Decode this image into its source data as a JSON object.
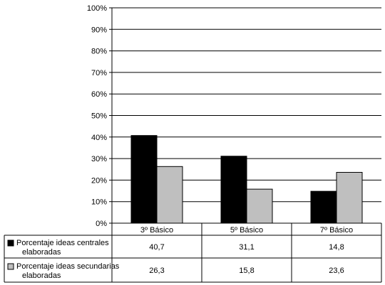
{
  "chart_data": {
    "type": "bar",
    "categories": [
      "3º Básico",
      "5º Básico",
      "7º Básico"
    ],
    "series": [
      {
        "name": "Porcentaje ideas centrales elaboradas",
        "name_lines": [
          "Porcentaje ideas centrales",
          "elaboradas"
        ],
        "values": [
          40.7,
          31.1,
          14.8
        ],
        "value_labels": [
          "40,7",
          "31,1",
          "14,8"
        ],
        "color": "#000000"
      },
      {
        "name": "Porcentaje ideas secundarias elaboradas",
        "name_lines": [
          "Porcentaje ideas secundarias",
          "elaboradas"
        ],
        "values": [
          26.3,
          15.8,
          23.6
        ],
        "value_labels": [
          "26,3",
          "15,8",
          "23,6"
        ],
        "color": "#bfbfbf"
      }
    ],
    "ylim": [
      0,
      100
    ],
    "yticks": [
      "0%",
      "10%",
      "20%",
      "30%",
      "40%",
      "50%",
      "60%",
      "70%",
      "80%",
      "90%",
      "100%"
    ],
    "grid": true,
    "legend": "data-table",
    "title": "",
    "xlabel": "",
    "ylabel": ""
  }
}
